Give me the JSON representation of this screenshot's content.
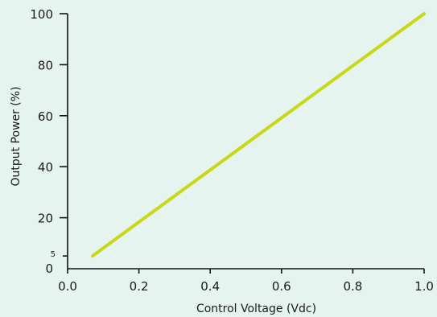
{
  "chart_data": {
    "type": "line",
    "title": "",
    "xlabel": "Control Voltage (Vdc)",
    "ylabel": "Output Power (%)",
    "xlim": [
      0.0,
      1.0
    ],
    "ylim": [
      0,
      100
    ],
    "x_ticks": [
      "0.0",
      "0.2",
      "0.4",
      "0.6",
      "0.8",
      "1.0"
    ],
    "y_ticks": [
      "0",
      "20",
      "40",
      "60",
      "80",
      "100"
    ],
    "y_extra_ticks": [
      "5"
    ],
    "grid": false,
    "background_color": "#e6f4ef",
    "series": [
      {
        "color": "#c8d816",
        "x": [
          0.07,
          1.0
        ],
        "y": [
          5,
          100
        ]
      }
    ]
  }
}
